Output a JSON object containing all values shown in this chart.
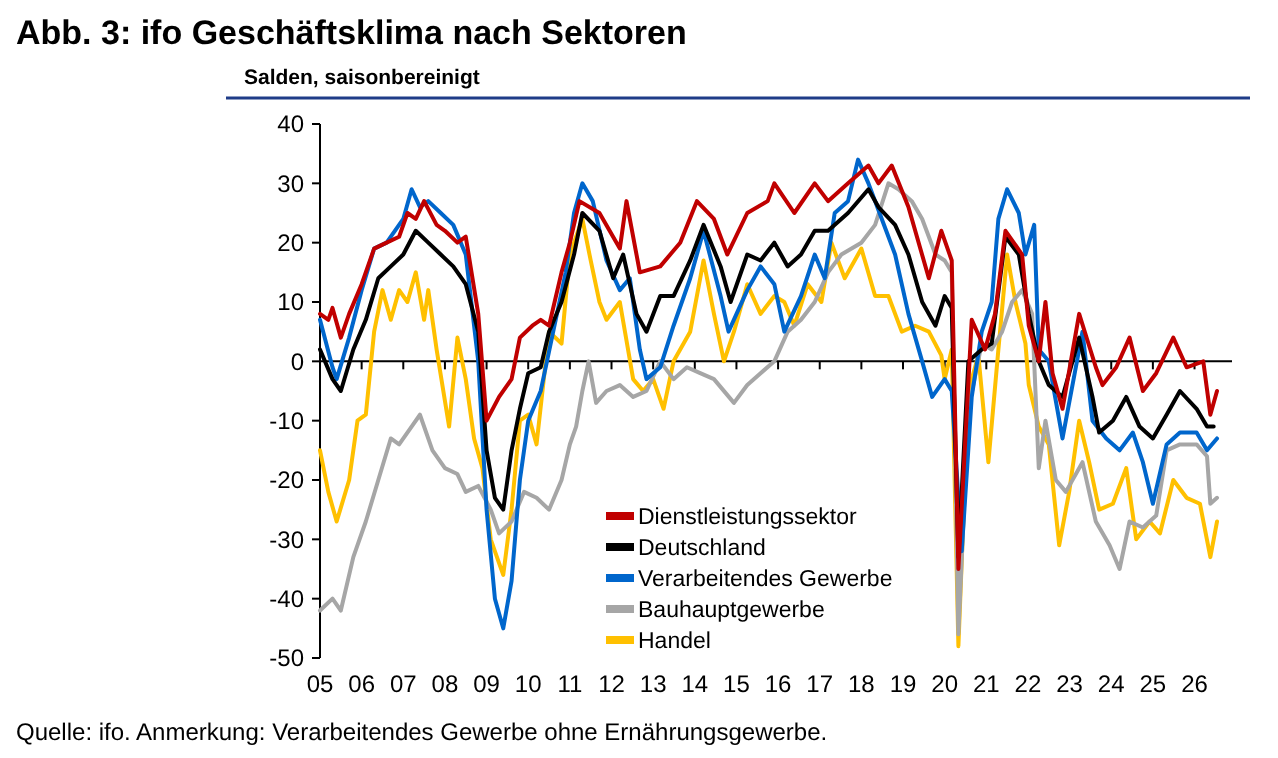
{
  "chart_data": {
    "type": "line",
    "title": "Abb. 3: ifo Geschäftsklima nach Sektoren",
    "subtitle": "Salden, saisonbereinigt",
    "annotations": [
      "Quelle: ifo. Anmerkung: Verarbeitendes Gewerbe ohne Ernährungsgewerbe."
    ],
    "xlim": [
      2005,
      2026.9
    ],
    "xticks": [
      {
        "value": 2005,
        "label": "05"
      },
      {
        "value": 2006,
        "label": "06"
      },
      {
        "value": 2007,
        "label": "07"
      },
      {
        "value": 2008,
        "label": "08"
      },
      {
        "value": 2009,
        "label": "09"
      },
      {
        "value": 2010,
        "label": "10"
      },
      {
        "value": 2011,
        "label": "11"
      },
      {
        "value": 2012,
        "label": "12"
      },
      {
        "value": 2013,
        "label": "13"
      },
      {
        "value": 2014,
        "label": "14"
      },
      {
        "value": 2015,
        "label": "15"
      },
      {
        "value": 2016,
        "label": "16"
      },
      {
        "value": 2017,
        "label": "17"
      },
      {
        "value": 2018,
        "label": "18"
      },
      {
        "value": 2019,
        "label": "19"
      },
      {
        "value": 2020,
        "label": "20"
      },
      {
        "value": 2021,
        "label": "21"
      },
      {
        "value": 2022,
        "label": "22"
      },
      {
        "value": 2023,
        "label": "23"
      },
      {
        "value": 2024,
        "label": "24"
      },
      {
        "value": 2025,
        "label": "25"
      },
      {
        "value": 2026,
        "label": "26"
      }
    ],
    "ylim": [
      -50,
      40
    ],
    "yticks": [
      -50,
      -40,
      -30,
      -20,
      -10,
      0,
      10,
      20,
      30,
      40
    ],
    "legend": "bottom",
    "marker": "none",
    "line_style": "solid",
    "series": [
      {
        "name": "Dienstleistungssektor",
        "color": "#c00000",
        "x": [
          2005,
          2005.2,
          2005.3,
          2005.5,
          2005.7,
          2006,
          2006.3,
          2006.6,
          2006.9,
          2007.1,
          2007.3,
          2007.5,
          2007.8,
          2008,
          2008.3,
          2008.5,
          2008.8,
          2009,
          2009.3,
          2009.6,
          2009.8,
          2010.1,
          2010.3,
          2010.5,
          2010.8,
          2011,
          2011.23,
          2011.71,
          2012.2,
          2012.36,
          2012.68,
          2013.17,
          2013.65,
          2014.05,
          2014.46,
          2014.78,
          2015.26,
          2015.75,
          2015.91,
          2016.39,
          2016.88,
          2017.2,
          2017.68,
          2018.17,
          2018.41,
          2018.73,
          2019.13,
          2019.62,
          2019.92,
          2020.17,
          2020.33,
          2020.65,
          2020.97,
          2021.21,
          2021.46,
          2021.86,
          2022.02,
          2022.26,
          2022.42,
          2022.59,
          2022.83,
          2023.23,
          2023.63,
          2023.79,
          2024.12,
          2024.44,
          2024.76,
          2025.08,
          2025.49,
          2025.81,
          2026.21,
          2026.38,
          2026.54
        ],
        "values": [
          8,
          7,
          9,
          4,
          8,
          13,
          19,
          20,
          21,
          25,
          24,
          27,
          23,
          22,
          20,
          21,
          8,
          -10,
          -6,
          -3,
          4,
          6,
          7,
          6,
          15,
          20,
          27,
          25,
          19,
          27,
          15,
          16,
          20,
          27,
          24,
          18,
          25,
          27,
          30,
          25,
          30,
          27,
          30,
          33,
          30,
          33,
          26,
          14,
          22,
          17,
          -35,
          7,
          2,
          8,
          22,
          18,
          6,
          0,
          10,
          -2,
          -8,
          8,
          -1,
          -4,
          -1,
          4,
          -5,
          -2,
          4,
          -1,
          0,
          -9,
          -5
        ]
      },
      {
        "name": "Deutschland",
        "color": "#000000",
        "x": [
          2005,
          2005.3,
          2005.5,
          2005.8,
          2006.1,
          2006.4,
          2006.7,
          2007,
          2007.3,
          2007.6,
          2007.9,
          2008.2,
          2008.5,
          2008.8,
          2009,
          2009.2,
          2009.4,
          2009.6,
          2009.8,
          2010,
          2010.3,
          2010.5,
          2010.8,
          2011.1,
          2011.3,
          2011.71,
          2012.04,
          2012.28,
          2012.6,
          2012.84,
          2013.17,
          2013.49,
          2013.89,
          2014.21,
          2014.62,
          2014.86,
          2015.26,
          2015.58,
          2015.91,
          2016.23,
          2016.55,
          2016.88,
          2017.2,
          2017.68,
          2018.17,
          2018.41,
          2018.81,
          2019.13,
          2019.46,
          2019.78,
          2020,
          2020.17,
          2020.33,
          2020.57,
          2020.89,
          2021.13,
          2021.46,
          2021.78,
          2022.02,
          2022.26,
          2022.5,
          2022.83,
          2023.23,
          2023.55,
          2023.71,
          2024.04,
          2024.36,
          2024.68,
          2025.0,
          2025.33,
          2025.65,
          2026.05,
          2026.3,
          2026.46
        ],
        "values": [
          2,
          -3,
          -5,
          2,
          7,
          14,
          16,
          18,
          22,
          20,
          18,
          16,
          13,
          5,
          -15,
          -23,
          -25,
          -15,
          -8,
          -2,
          -1,
          5,
          10,
          18,
          25,
          22,
          14,
          18,
          8,
          5,
          11,
          11,
          17,
          23,
          16,
          10,
          18,
          17,
          20,
          16,
          18,
          22,
          22,
          25,
          29,
          26,
          23,
          18,
          10,
          6,
          11,
          9,
          -33,
          0,
          2,
          3,
          21,
          18,
          8,
          0,
          -4,
          -6,
          4,
          -6,
          -12,
          -10,
          -6,
          -11,
          -13,
          -9,
          -5,
          -8,
          -11,
          -11
        ]
      },
      {
        "name": "Verarbeitendes Gewerbe",
        "color": "#0066cc",
        "x": [
          2005,
          2005.3,
          2005.4,
          2005.7,
          2006,
          2006.3,
          2006.6,
          2007,
          2007.2,
          2007.4,
          2007.6,
          2007.9,
          2008.2,
          2008.5,
          2008.8,
          2009,
          2009.2,
          2009.4,
          2009.6,
          2009.8,
          2010,
          2010.3,
          2010.6,
          2010.9,
          2011.1,
          2011.3,
          2011.55,
          2011.88,
          2012.2,
          2012.44,
          2012.68,
          2012.84,
          2013.17,
          2013.49,
          2013.89,
          2014.21,
          2014.62,
          2014.81,
          2015.26,
          2015.58,
          2015.91,
          2016.15,
          2016.55,
          2016.88,
          2017.12,
          2017.36,
          2017.68,
          2017.92,
          2018.17,
          2018.49,
          2018.81,
          2019.13,
          2019.46,
          2019.7,
          2020,
          2020.17,
          2020.41,
          2020.65,
          2020.89,
          2021.13,
          2021.29,
          2021.5,
          2021.78,
          2021.94,
          2022.15,
          2022.26,
          2022.5,
          2022.83,
          2023.31,
          2023.55,
          2023.88,
          2024.2,
          2024.52,
          2024.76,
          2025.0,
          2025.33,
          2025.65,
          2026.05,
          2026.3,
          2026.54
        ],
        "values": [
          7,
          -1,
          -3,
          4,
          12,
          19,
          20,
          24,
          29,
          26,
          27,
          25,
          23,
          18,
          0,
          -25,
          -40,
          -45,
          -37,
          -20,
          -10,
          -5,
          5,
          15,
          25,
          30,
          27,
          17,
          12,
          14,
          2,
          -3,
          -1,
          6,
          14,
          22,
          11,
          5,
          12,
          16,
          13,
          5,
          11,
          18,
          14,
          25,
          27,
          34,
          30,
          24,
          18,
          8,
          0,
          -6,
          -3,
          -5,
          -32,
          -6,
          5,
          10,
          24,
          29,
          25,
          18,
          23,
          2,
          0,
          -13,
          5,
          -10,
          -13,
          -15,
          -12,
          -17,
          -24,
          -14,
          -12,
          -12,
          -15,
          -13
        ]
      },
      {
        "name": "Bauhauptgewerbe",
        "color": "#a6a6a6",
        "x": [
          2005,
          2005.3,
          2005.5,
          2005.8,
          2006.1,
          2006.4,
          2006.7,
          2006.9,
          2007.2,
          2007.4,
          2007.7,
          2008,
          2008.3,
          2008.5,
          2008.8,
          2009.1,
          2009.3,
          2009.6,
          2009.9,
          2010.2,
          2010.5,
          2010.8,
          2011,
          2011.15,
          2011.3,
          2011.45,
          2011.63,
          2011.88,
          2012.2,
          2012.52,
          2012.84,
          2013.17,
          2013.49,
          2013.81,
          2014.13,
          2014.46,
          2014.94,
          2015.26,
          2015.58,
          2015.91,
          2016.23,
          2016.55,
          2016.88,
          2017.2,
          2017.52,
          2018,
          2018.33,
          2018.65,
          2018.89,
          2019.21,
          2019.46,
          2019.78,
          2020,
          2020.17,
          2020.33,
          2020.57,
          2020.89,
          2021.13,
          2021.38,
          2021.62,
          2021.86,
          2022.1,
          2022.26,
          2022.42,
          2022.67,
          2022.91,
          2023.31,
          2023.63,
          2023.96,
          2024.2,
          2024.44,
          2024.76,
          2025.08,
          2025.33,
          2025.65,
          2026.05,
          2026.3,
          2026.38,
          2026.54
        ],
        "values": [
          -42,
          -40,
          -42,
          -33,
          -27,
          -20,
          -13,
          -14,
          -11,
          -9,
          -15,
          -18,
          -19,
          -22,
          -21,
          -25,
          -29,
          -27,
          -22,
          -23,
          -25,
          -20,
          -14,
          -11,
          -5,
          0,
          -7,
          -5,
          -4,
          -6,
          -5,
          0,
          -3,
          -1,
          -2,
          -3,
          -7,
          -4,
          -2,
          0,
          5,
          7,
          10,
          15,
          18,
          20,
          23,
          30,
          29,
          27,
          24,
          18,
          17,
          15,
          -46,
          -8,
          3,
          2,
          5,
          10,
          12,
          8,
          -18,
          -10,
          -20,
          -22,
          -17,
          -27,
          -31,
          -35,
          -27,
          -28,
          -26,
          -15,
          -14,
          -14,
          -16,
          -24,
          -23
        ]
      },
      {
        "name": "Handel",
        "color": "#ffc000",
        "x": [
          2005,
          2005.2,
          2005.4,
          2005.7,
          2005.9,
          2006.1,
          2006.3,
          2006.5,
          2006.7,
          2006.9,
          2007.1,
          2007.3,
          2007.5,
          2007.6,
          2007.8,
          2008.1,
          2008.3,
          2008.5,
          2008.7,
          2008.9,
          2009.1,
          2009.3,
          2009.4,
          2009.6,
          2009.8,
          2010,
          2010.2,
          2010.5,
          2010.8,
          2011,
          2011.3,
          2011.5,
          2011.71,
          2011.88,
          2012.2,
          2012.52,
          2012.76,
          2013.0,
          2013.25,
          2013.49,
          2013.89,
          2014.21,
          2014.46,
          2014.7,
          2014.94,
          2015.26,
          2015.58,
          2015.91,
          2016.15,
          2016.39,
          2016.71,
          2017.04,
          2017.28,
          2017.6,
          2018.0,
          2018.33,
          2018.65,
          2018.97,
          2019.29,
          2019.62,
          2019.92,
          2020.0,
          2020.17,
          2020.33,
          2020.57,
          2020.81,
          2021.05,
          2021.29,
          2021.5,
          2021.7,
          2021.94,
          2022.02,
          2022.26,
          2022.5,
          2022.75,
          2022.99,
          2023.23,
          2023.47,
          2023.71,
          2024.04,
          2024.36,
          2024.6,
          2024.92,
          2025.17,
          2025.49,
          2025.81,
          2026.13,
          2026.38,
          2026.54
        ],
        "values": [
          -15,
          -22,
          -27,
          -20,
          -10,
          -9,
          5,
          12,
          7,
          12,
          10,
          15,
          7,
          12,
          2,
          -11,
          4,
          -3,
          -13,
          -18,
          -30,
          -34,
          -36,
          -25,
          -10,
          -9,
          -14,
          5,
          3,
          18,
          24,
          17,
          10,
          7,
          10,
          -3,
          -5,
          -3,
          -8,
          0,
          5,
          17,
          8,
          0,
          5,
          13,
          8,
          11,
          10,
          6,
          13,
          10,
          20,
          14,
          19,
          11,
          11,
          5,
          6,
          5,
          1,
          -3,
          2,
          -48,
          -5,
          1,
          -17,
          2,
          18,
          10,
          3,
          -4,
          -11,
          -14,
          -31,
          -22,
          -10,
          -17,
          -25,
          -24,
          -18,
          -30,
          -27,
          -29,
          -20,
          -23,
          -24,
          -33,
          -27
        ]
      }
    ]
  }
}
